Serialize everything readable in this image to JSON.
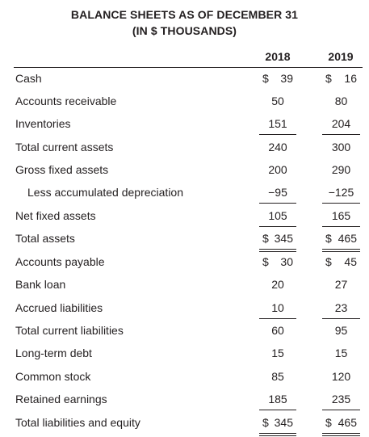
{
  "title": {
    "line1": "BALANCE SHEETS AS OF DECEMBER 31",
    "line2": "(IN $ THOUSANDS)"
  },
  "columns": [
    "2018",
    "2019"
  ],
  "rows": [
    {
      "label": "Cash",
      "indent": false,
      "v2018": "39",
      "v2019": "16",
      "dollar": true,
      "underline": "none"
    },
    {
      "label": "Accounts receivable",
      "indent": false,
      "v2018": "50",
      "v2019": "80",
      "dollar": false,
      "underline": "none"
    },
    {
      "label": "Inventories",
      "indent": false,
      "v2018": "151",
      "v2019": "204",
      "dollar": false,
      "underline": "single"
    },
    {
      "label": "Total current assets",
      "indent": false,
      "v2018": "240",
      "v2019": "300",
      "dollar": false,
      "underline": "none"
    },
    {
      "label": "Gross fixed assets",
      "indent": false,
      "v2018": "200",
      "v2019": "290",
      "dollar": false,
      "underline": "none"
    },
    {
      "label": "Less accumulated depreciation",
      "indent": true,
      "v2018": "−95",
      "v2019": "−125",
      "dollar": false,
      "underline": "single"
    },
    {
      "label": "Net fixed assets",
      "indent": false,
      "v2018": "105",
      "v2019": "165",
      "dollar": false,
      "underline": "single"
    },
    {
      "label": "Total assets",
      "indent": false,
      "v2018": "345",
      "v2019": "465",
      "dollar": true,
      "underline": "double"
    },
    {
      "label": "Accounts payable",
      "indent": false,
      "v2018": "30",
      "v2019": "45",
      "dollar": true,
      "underline": "none"
    },
    {
      "label": "Bank loan",
      "indent": false,
      "v2018": "20",
      "v2019": "27",
      "dollar": false,
      "underline": "none"
    },
    {
      "label": "Accrued liabilities",
      "indent": false,
      "v2018": "10",
      "v2019": "23",
      "dollar": false,
      "underline": "single"
    },
    {
      "label": "Total current liabilities",
      "indent": false,
      "v2018": "60",
      "v2019": "95",
      "dollar": false,
      "underline": "none"
    },
    {
      "label": "Long-term debt",
      "indent": false,
      "v2018": "15",
      "v2019": "15",
      "dollar": false,
      "underline": "none"
    },
    {
      "label": "Common stock",
      "indent": false,
      "v2018": "85",
      "v2019": "120",
      "dollar": false,
      "underline": "none"
    },
    {
      "label": "Retained earnings",
      "indent": false,
      "v2018": "185",
      "v2019": "235",
      "dollar": false,
      "underline": "single"
    },
    {
      "label": "Total liabilities and equity",
      "indent": false,
      "v2018": "345",
      "v2019": "465",
      "dollar": true,
      "underline": "double"
    }
  ],
  "colors": {
    "text": "#231f20",
    "background": "#ffffff"
  }
}
